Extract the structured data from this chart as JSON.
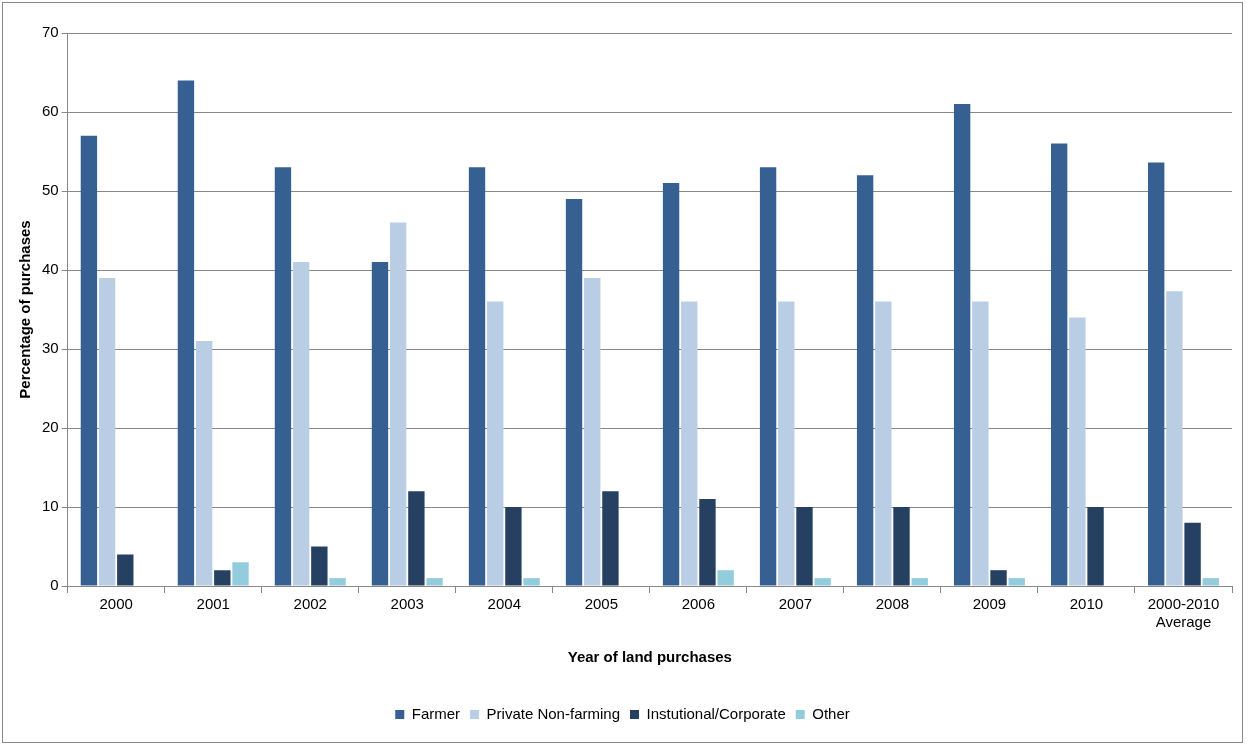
{
  "chart_data": {
    "type": "bar",
    "xlabel": "Year of land purchases",
    "ylabel": "Percentage of purchases",
    "categories": [
      "2000",
      "2001",
      "2002",
      "2003",
      "2004",
      "2005",
      "2006",
      "2007",
      "2008",
      "2009",
      "2010",
      "2000-2010 Average"
    ],
    "series": [
      {
        "name": "Farmer",
        "color": "#366092",
        "values": [
          57,
          64,
          53,
          41,
          53,
          49,
          51,
          53,
          52,
          61,
          56,
          53.6
        ]
      },
      {
        "name": "Private Non-farming",
        "color": "#b9cde5",
        "values": [
          39,
          31,
          41,
          46,
          36,
          39,
          36,
          36,
          36,
          36,
          34,
          37.3
        ]
      },
      {
        "name": "Instutional/Corporate",
        "color": "#254061",
        "values": [
          4,
          2,
          5,
          12,
          10,
          12,
          11,
          10,
          10,
          2,
          10,
          8
        ]
      },
      {
        "name": "Other",
        "color": "#93cddd",
        "values": [
          0,
          3,
          1,
          1,
          1,
          0,
          2,
          1,
          1,
          1,
          0,
          1
        ]
      }
    ],
    "ylim": [
      0,
      70
    ],
    "yticks": [
      0,
      10,
      20,
      30,
      40,
      50,
      60,
      70
    ],
    "grid": "y",
    "legend": "bottom"
  }
}
